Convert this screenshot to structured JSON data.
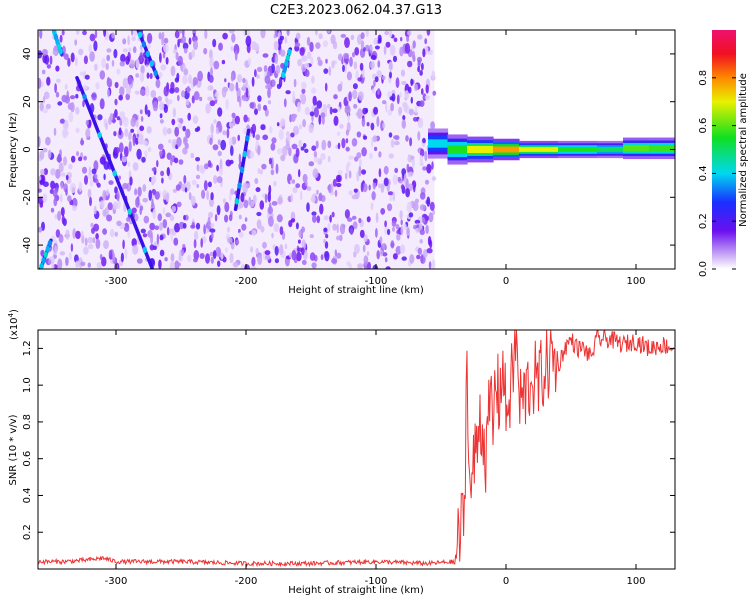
{
  "title": "C2E3.2023.062.04.37.G13",
  "colors": {
    "snr_line": "#ee3333",
    "noise": "#7a1cf0",
    "frame": "#000000"
  },
  "chart_data": [
    {
      "type": "heatmap",
      "xlabel": "Height of straight line (km)",
      "ylabel": "Frequency (Hz)",
      "xlim": [
        -360,
        130
      ],
      "ylim": [
        -50,
        50
      ],
      "xticks": [
        -300,
        -200,
        -100,
        0,
        100
      ],
      "yticks": [
        -40,
        -20,
        0,
        20,
        40
      ],
      "xtick_labels": [
        "-300",
        "-200",
        "-100",
        "0",
        "100"
      ],
      "ytick_labels": [
        "-40",
        "-20",
        "0",
        "20",
        "40"
      ],
      "noise_region_x": [
        -360,
        -55
      ],
      "signal_band": {
        "x": [
          -60,
          -45,
          -30,
          -10,
          10,
          40,
          70,
          90,
          110,
          130
        ],
        "center_hz": [
          5,
          0,
          0,
          0,
          0,
          0,
          0,
          0,
          1,
          0
        ],
        "halfwidth_hz": [
          3,
          4,
          3,
          3,
          2,
          2,
          2,
          2,
          3,
          2
        ],
        "amplitude": [
          0.35,
          0.55,
          0.75,
          0.9,
          0.95,
          0.7,
          0.6,
          0.55,
          0.85,
          0.5
        ]
      },
      "streaks": [
        {
          "x": [
            -358,
            -350
          ],
          "y": [
            -50,
            -38
          ]
        },
        {
          "x": [
            -330,
            -272
          ],
          "y": [
            30,
            -50
          ]
        },
        {
          "x": [
            -348,
            -342
          ],
          "y": [
            50,
            40
          ]
        },
        {
          "x": [
            -283,
            -268
          ],
          "y": [
            50,
            30
          ]
        },
        {
          "x": [
            -208,
            -198
          ],
          "y": [
            -25,
            8
          ]
        },
        {
          "x": [
            -172,
            -166
          ],
          "y": [
            30,
            42
          ]
        }
      ],
      "colorbar": {
        "label": "Normalized spectral amplitude",
        "range": [
          0.0,
          1.0
        ],
        "ticks": [
          0.0,
          0.2,
          0.4,
          0.6,
          0.8
        ],
        "tick_labels": [
          "0.0",
          "0.2",
          "0.4",
          "0.6",
          "0.8"
        ]
      }
    },
    {
      "type": "line",
      "xlabel": "Height of straight line (km)",
      "ylabel": "SNR (10 * v/v)",
      "y_multiplier": "(x10",
      "y_multiplier_exp": "4",
      "y_multiplier_close": ")",
      "xlim": [
        -360,
        130
      ],
      "ylim": [
        0,
        1.3
      ],
      "xticks": [
        -300,
        -200,
        -100,
        0,
        100
      ],
      "yticks": [
        0.2,
        0.4,
        0.6,
        0.8,
        1.0,
        1.2
      ],
      "xtick_labels": [
        "-300",
        "-200",
        "-100",
        "0",
        "100"
      ],
      "ytick_labels": [
        "0.2",
        "0.4",
        "0.6",
        "0.8",
        "1.0",
        "1.2"
      ],
      "series": [
        {
          "x": [
            -360,
            -340,
            -320,
            -310,
            -300,
            -280,
            -250,
            -200,
            -150,
            -100,
            -60,
            -40,
            -35,
            -32,
            -30,
            -28,
            -25,
            -22,
            -20,
            -15,
            -12,
            -10,
            -8,
            -5,
            -3,
            0,
            3,
            5,
            8,
            10,
            15,
            20,
            25,
            30,
            35,
            40,
            45,
            50,
            55,
            60,
            65,
            70,
            80,
            90,
            100,
            110,
            120,
            130
          ],
          "y": [
            0.04,
            0.04,
            0.05,
            0.06,
            0.04,
            0.04,
            0.04,
            0.03,
            0.03,
            0.04,
            0.03,
            0.04,
            0.2,
            0.3,
            1.2,
            0.4,
            0.55,
            0.7,
            0.85,
            0.6,
            0.95,
            0.75,
            1.05,
            0.9,
            1.15,
            0.85,
            0.95,
            1.05,
            1.3,
            0.9,
            0.95,
            1.05,
            1.0,
            1.1,
            1.15,
            1.1,
            1.2,
            1.25,
            1.2,
            1.2,
            1.15,
            1.25,
            1.25,
            1.22,
            1.24,
            1.2,
            1.22,
            1.2
          ]
        }
      ]
    }
  ]
}
